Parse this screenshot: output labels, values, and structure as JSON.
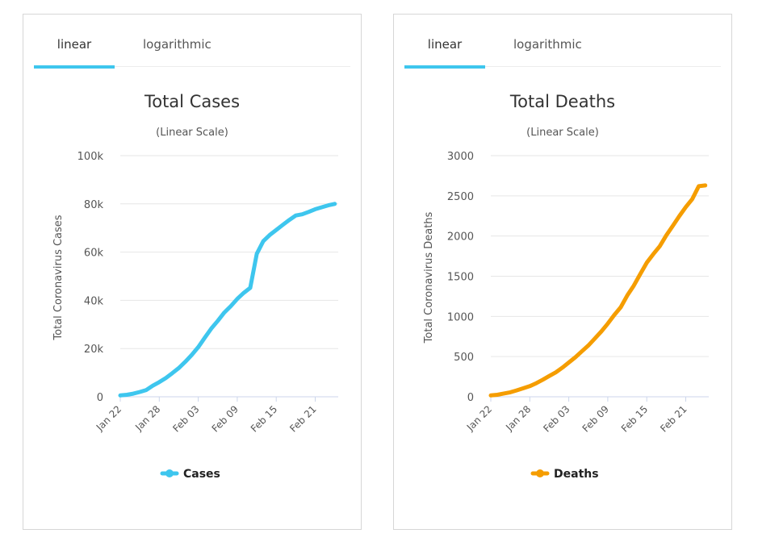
{
  "panels": [
    {
      "tabs": [
        {
          "label": "linear",
          "active": true
        },
        {
          "label": "logarithmic",
          "active": false
        }
      ]
    },
    {
      "tabs": [
        {
          "label": "linear",
          "active": true
        },
        {
          "label": "logarithmic",
          "active": false
        }
      ]
    }
  ],
  "chart_data": [
    {
      "type": "line",
      "title": "Total Cases",
      "subtitle": "(Linear Scale)",
      "xlabel": "",
      "ylabel": "Total Coronavirus Cases",
      "ylim": [
        0,
        100000
      ],
      "yticks": [
        0,
        20000,
        40000,
        60000,
        80000,
        100000
      ],
      "yticklabels": [
        "0",
        "20k",
        "40k",
        "60k",
        "80k",
        "100k"
      ],
      "xticklabels": [
        "Jan 22",
        "Jan 28",
        "Feb 03",
        "Feb 09",
        "Feb 15",
        "Feb 21"
      ],
      "xtick_index": [
        0,
        6,
        12,
        18,
        24,
        30
      ],
      "grid": true,
      "legend": "bottom",
      "color": "#3ec6ee",
      "series": [
        {
          "name": "Cases",
          "x": [
            "Jan 22",
            "Jan 23",
            "Jan 24",
            "Jan 25",
            "Jan 26",
            "Jan 27",
            "Jan 28",
            "Jan 29",
            "Jan 30",
            "Jan 31",
            "Feb 01",
            "Feb 02",
            "Feb 03",
            "Feb 04",
            "Feb 05",
            "Feb 06",
            "Feb 07",
            "Feb 08",
            "Feb 09",
            "Feb 10",
            "Feb 11",
            "Feb 12",
            "Feb 13",
            "Feb 14",
            "Feb 15",
            "Feb 16",
            "Feb 17",
            "Feb 18",
            "Feb 19",
            "Feb 20",
            "Feb 21",
            "Feb 22",
            "Feb 23",
            "Feb 24"
          ],
          "values": [
            580,
            845,
            1320,
            2000,
            2800,
            4600,
            6100,
            7800,
            9800,
            11900,
            14500,
            17400,
            20600,
            24500,
            28300,
            31500,
            34900,
            37600,
            40600,
            43100,
            45200,
            59300,
            64500,
            67100,
            69200,
            71300,
            73300,
            75200,
            75700,
            76700,
            77800,
            78600,
            79400,
            80000
          ]
        }
      ]
    },
    {
      "type": "line",
      "title": "Total Deaths",
      "subtitle": "(Linear Scale)",
      "xlabel": "",
      "ylabel": "Total Coronavirus Deaths",
      "ylim": [
        0,
        3000
      ],
      "yticks": [
        0,
        500,
        1000,
        1500,
        2000,
        2500,
        3000
      ],
      "yticklabels": [
        "0",
        "500",
        "1000",
        "1500",
        "2000",
        "2500",
        "3000"
      ],
      "xticklabels": [
        "Jan 22",
        "Jan 28",
        "Feb 03",
        "Feb 09",
        "Feb 15",
        "Feb 21"
      ],
      "xtick_index": [
        0,
        6,
        12,
        18,
        24,
        30
      ],
      "grid": true,
      "legend": "bottom",
      "color": "#f59d00",
      "series": [
        {
          "name": "Deaths",
          "x": [
            "Jan 22",
            "Jan 23",
            "Jan 24",
            "Jan 25",
            "Jan 26",
            "Jan 27",
            "Jan 28",
            "Jan 29",
            "Jan 30",
            "Jan 31",
            "Feb 01",
            "Feb 02",
            "Feb 03",
            "Feb 04",
            "Feb 05",
            "Feb 06",
            "Feb 07",
            "Feb 08",
            "Feb 09",
            "Feb 10",
            "Feb 11",
            "Feb 12",
            "Feb 13",
            "Feb 14",
            "Feb 15",
            "Feb 16",
            "Feb 17",
            "Feb 18",
            "Feb 19",
            "Feb 20",
            "Feb 21",
            "Feb 22",
            "Feb 23",
            "Feb 24"
          ],
          "values": [
            17,
            25,
            41,
            56,
            80,
            106,
            132,
            170,
            213,
            259,
            304,
            362,
            426,
            492,
            565,
            638,
            724,
            813,
            910,
            1018,
            1115,
            1261,
            1383,
            1526,
            1669,
            1775,
            1873,
            2009,
            2126,
            2247,
            2360,
            2460,
            2620,
            2630
          ]
        }
      ]
    }
  ]
}
